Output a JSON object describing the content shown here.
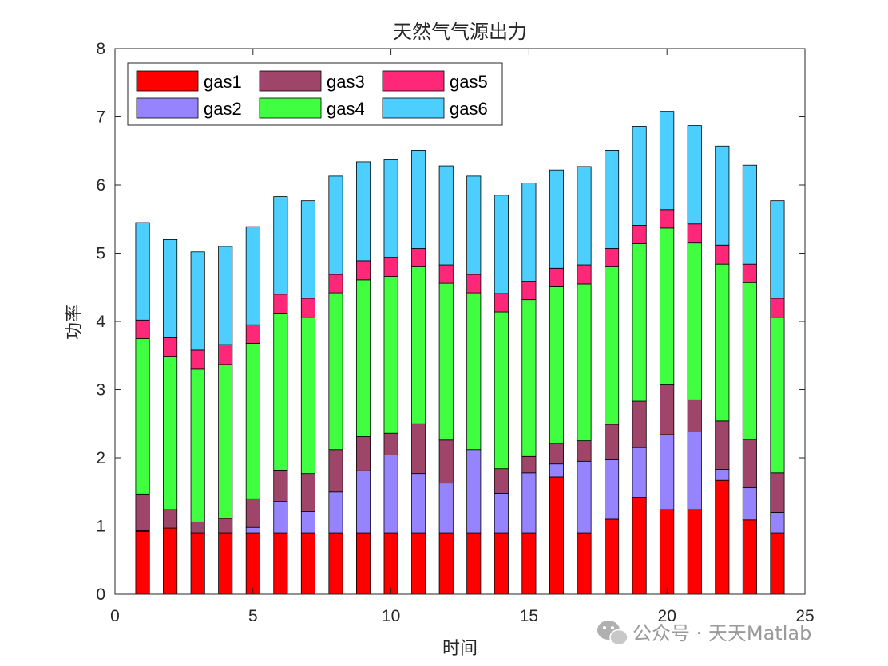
{
  "chart_data": {
    "type": "bar",
    "stacked": true,
    "title": "天然气气源出力",
    "xlabel": "时间",
    "ylabel": "功率",
    "xlim": [
      0,
      25
    ],
    "ylim": [
      0,
      8
    ],
    "xticks": [
      0,
      5,
      10,
      15,
      20,
      25
    ],
    "yticks": [
      0,
      1,
      2,
      3,
      4,
      5,
      6,
      7,
      8
    ],
    "legend_position": "top-left",
    "legend_columns": 3,
    "x": [
      1,
      2,
      3,
      4,
      5,
      6,
      7,
      8,
      9,
      10,
      11,
      12,
      13,
      14,
      15,
      16,
      17,
      18,
      19,
      20,
      21,
      22,
      23,
      24
    ],
    "series": [
      {
        "name": "gas1",
        "color": "#ff0000",
        "values": [
          0.92,
          0.97,
          0.9,
          0.9,
          0.9,
          0.9,
          0.9,
          0.9,
          0.9,
          0.9,
          0.9,
          0.9,
          0.9,
          0.9,
          0.9,
          1.72,
          0.9,
          1.1,
          1.42,
          1.24,
          1.24,
          1.67,
          1.09,
          0.9
        ]
      },
      {
        "name": "gas2",
        "color": "#9684ff",
        "values": [
          0.01,
          0.0,
          0.0,
          0.0,
          0.08,
          0.46,
          0.31,
          0.6,
          0.91,
          1.14,
          0.87,
          0.73,
          1.22,
          0.58,
          0.88,
          0.19,
          1.05,
          0.87,
          0.73,
          1.1,
          1.14,
          0.16,
          0.47,
          0.3
        ]
      },
      {
        "name": "gas3",
        "color": "#a0456a",
        "values": [
          0.54,
          0.27,
          0.16,
          0.21,
          0.42,
          0.46,
          0.56,
          0.62,
          0.5,
          0.32,
          0.73,
          0.63,
          0.0,
          0.36,
          0.24,
          0.3,
          0.3,
          0.52,
          0.68,
          0.73,
          0.47,
          0.71,
          0.71,
          0.58
        ]
      },
      {
        "name": "gas4",
        "color": "#40ff40",
        "values": [
          2.28,
          2.25,
          2.24,
          2.26,
          2.28,
          2.29,
          2.29,
          2.3,
          2.3,
          2.3,
          2.3,
          2.3,
          2.3,
          2.3,
          2.3,
          2.3,
          2.3,
          2.31,
          2.31,
          2.3,
          2.3,
          2.3,
          2.3,
          2.28
        ]
      },
      {
        "name": "gas5",
        "color": "#ff2878",
        "values": [
          0.27,
          0.27,
          0.28,
          0.29,
          0.27,
          0.29,
          0.28,
          0.27,
          0.28,
          0.28,
          0.27,
          0.27,
          0.27,
          0.27,
          0.27,
          0.27,
          0.28,
          0.27,
          0.27,
          0.27,
          0.28,
          0.28,
          0.27,
          0.28
        ]
      },
      {
        "name": "gas6",
        "color": "#4ccfff",
        "values": [
          1.43,
          1.44,
          1.44,
          1.44,
          1.44,
          1.43,
          1.43,
          1.44,
          1.45,
          1.44,
          1.44,
          1.45,
          1.44,
          1.44,
          1.44,
          1.44,
          1.44,
          1.44,
          1.45,
          1.44,
          1.44,
          1.45,
          1.45,
          1.43
        ]
      }
    ]
  },
  "watermark": {
    "text": "公众号 · 天天Matlab",
    "icon": "wechat-icon"
  }
}
